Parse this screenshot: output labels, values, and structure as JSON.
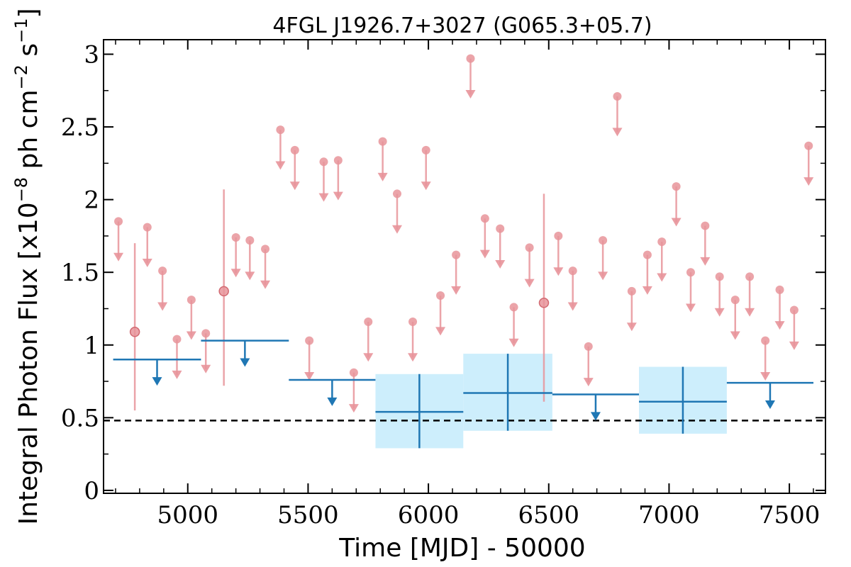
{
  "chart_data": {
    "type": "scatter",
    "title": "4FGL J1926.7+3027 (G065.3+05.7)",
    "xlabel": "Time [MJD] - 50000",
    "ylabel": "Integral Photon Flux [x10$^{-8}$ ph cm$^{-2}$ s$^{-1}$]",
    "ylabel_parts": {
      "base": "Integral Photon Flux [x10",
      "exp1": "−8",
      "mid": " ph cm",
      "exp2": "−2",
      "mid2": " s",
      "exp3": "−1",
      "end": "]"
    },
    "xlim": [
      4650,
      7650
    ],
    "ylim": [
      -0.02,
      3.1
    ],
    "xticks": [
      5000,
      5500,
      6000,
      6500,
      7000,
      7500
    ],
    "xtick_labels": [
      "5000",
      "5500",
      "6000",
      "6500",
      "7000",
      "7500"
    ],
    "yticks": [
      0,
      0.5,
      1,
      1.5,
      2,
      2.5,
      3
    ],
    "ytick_labels": [
      "0",
      "0.5",
      "1",
      "1.5",
      "2",
      "2.5",
      "3"
    ],
    "grid": false,
    "reference_line": {
      "y": 0.48,
      "style": "dashed",
      "color": "#000000"
    },
    "colors": {
      "short_bins": "#e8949a",
      "long_bins": "#1f77b4",
      "long_bins_fill": "#cdeefc"
    },
    "series": [
      {
        "marker": "circle",
        "upper_limits": [
          [
            4712,
            1.85
          ],
          [
            4832,
            1.81
          ],
          [
            4895,
            1.51
          ],
          [
            4955,
            1.04
          ],
          [
            5015,
            1.31
          ],
          [
            5075,
            1.08
          ],
          [
            5200,
            1.74
          ],
          [
            5258,
            1.72
          ],
          [
            5322,
            1.66
          ],
          [
            5385,
            2.48
          ],
          [
            5445,
            2.34
          ],
          [
            5505,
            1.03
          ],
          [
            5565,
            2.26
          ],
          [
            5625,
            2.27
          ],
          [
            5690,
            0.81
          ],
          [
            5750,
            1.16
          ],
          [
            5810,
            2.4
          ],
          [
            5870,
            2.04
          ],
          [
            5935,
            1.16
          ],
          [
            5990,
            2.34
          ],
          [
            6050,
            1.34
          ],
          [
            6115,
            1.62
          ],
          [
            6175,
            2.97
          ],
          [
            6235,
            1.87
          ],
          [
            6298,
            1.8
          ],
          [
            6355,
            1.26
          ],
          [
            6420,
            1.67
          ],
          [
            6540,
            1.75
          ],
          [
            6600,
            1.51
          ],
          [
            6665,
            0.99
          ],
          [
            6725,
            1.72
          ],
          [
            6785,
            2.71
          ],
          [
            6845,
            1.37
          ],
          [
            6910,
            1.62
          ],
          [
            6970,
            1.71
          ],
          [
            7030,
            2.09
          ],
          [
            7090,
            1.5
          ],
          [
            7150,
            1.82
          ],
          [
            7210,
            1.47
          ],
          [
            7275,
            1.31
          ],
          [
            7335,
            1.47
          ],
          [
            7400,
            1.03
          ],
          [
            7460,
            1.38
          ],
          [
            7520,
            1.24
          ],
          [
            7580,
            2.37
          ]
        ],
        "detections": [
          [
            4780,
            1.09,
            0.55,
            1.7
          ],
          [
            5150,
            1.37,
            0.72,
            2.07
          ],
          [
            6480,
            1.29,
            0.61,
            2.04
          ]
        ]
      },
      {
        "marker": "bin",
        "upper_limits": [
          [
            4690,
            5055,
            0.9
          ],
          [
            5055,
            5420,
            1.03
          ],
          [
            5420,
            5780,
            0.76
          ],
          [
            6515,
            6875,
            0.66
          ],
          [
            7240,
            7600,
            0.74
          ]
        ],
        "detections": [
          [
            5780,
            6145,
            0.54,
            0.29,
            0.8
          ],
          [
            6145,
            6515,
            0.67,
            0.41,
            0.94
          ],
          [
            6875,
            7240,
            0.61,
            0.39,
            0.85
          ]
        ]
      }
    ]
  }
}
